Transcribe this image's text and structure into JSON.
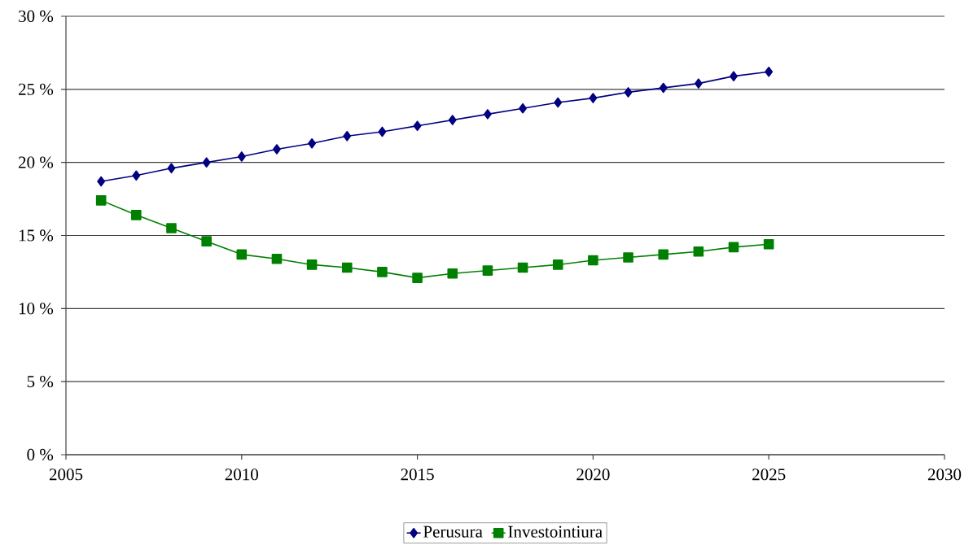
{
  "chart_data": {
    "type": "line",
    "x": [
      2006,
      2007,
      2008,
      2009,
      2010,
      2011,
      2012,
      2013,
      2014,
      2015,
      2016,
      2017,
      2018,
      2019,
      2020,
      2021,
      2022,
      2023,
      2024,
      2025
    ],
    "series": [
      {
        "name": "Perusura",
        "color": "#000080",
        "marker": "diamond",
        "values": [
          18.7,
          19.1,
          19.6,
          20.0,
          20.4,
          20.9,
          21.3,
          21.8,
          22.1,
          22.5,
          22.9,
          23.3,
          23.7,
          24.1,
          24.4,
          24.8,
          25.1,
          25.4,
          25.9,
          26.2
        ]
      },
      {
        "name": "Investointiura",
        "color": "#008000",
        "marker": "square",
        "values": [
          17.4,
          16.4,
          15.5,
          14.6,
          13.7,
          13.4,
          13.0,
          12.8,
          12.5,
          12.1,
          12.4,
          12.6,
          12.8,
          13.0,
          13.3,
          13.5,
          13.7,
          13.9,
          14.2,
          14.4
        ]
      }
    ],
    "xlim": [
      2005,
      2030
    ],
    "xticks": [
      2005,
      2010,
      2015,
      2020,
      2025,
      2030
    ],
    "ylim": [
      0,
      30
    ],
    "yticks": [
      {
        "value": 0,
        "label": "0 %"
      },
      {
        "value": 5,
        "label": "5 %"
      },
      {
        "value": 10,
        "label": "10 %"
      },
      {
        "value": 15,
        "label": "15 %"
      },
      {
        "value": 20,
        "label": "20 %"
      },
      {
        "value": 25,
        "label": "25 %"
      },
      {
        "value": 30,
        "label": "30 %"
      }
    ],
    "grid": "y",
    "legend": "bottom",
    "line_style": "solid"
  }
}
